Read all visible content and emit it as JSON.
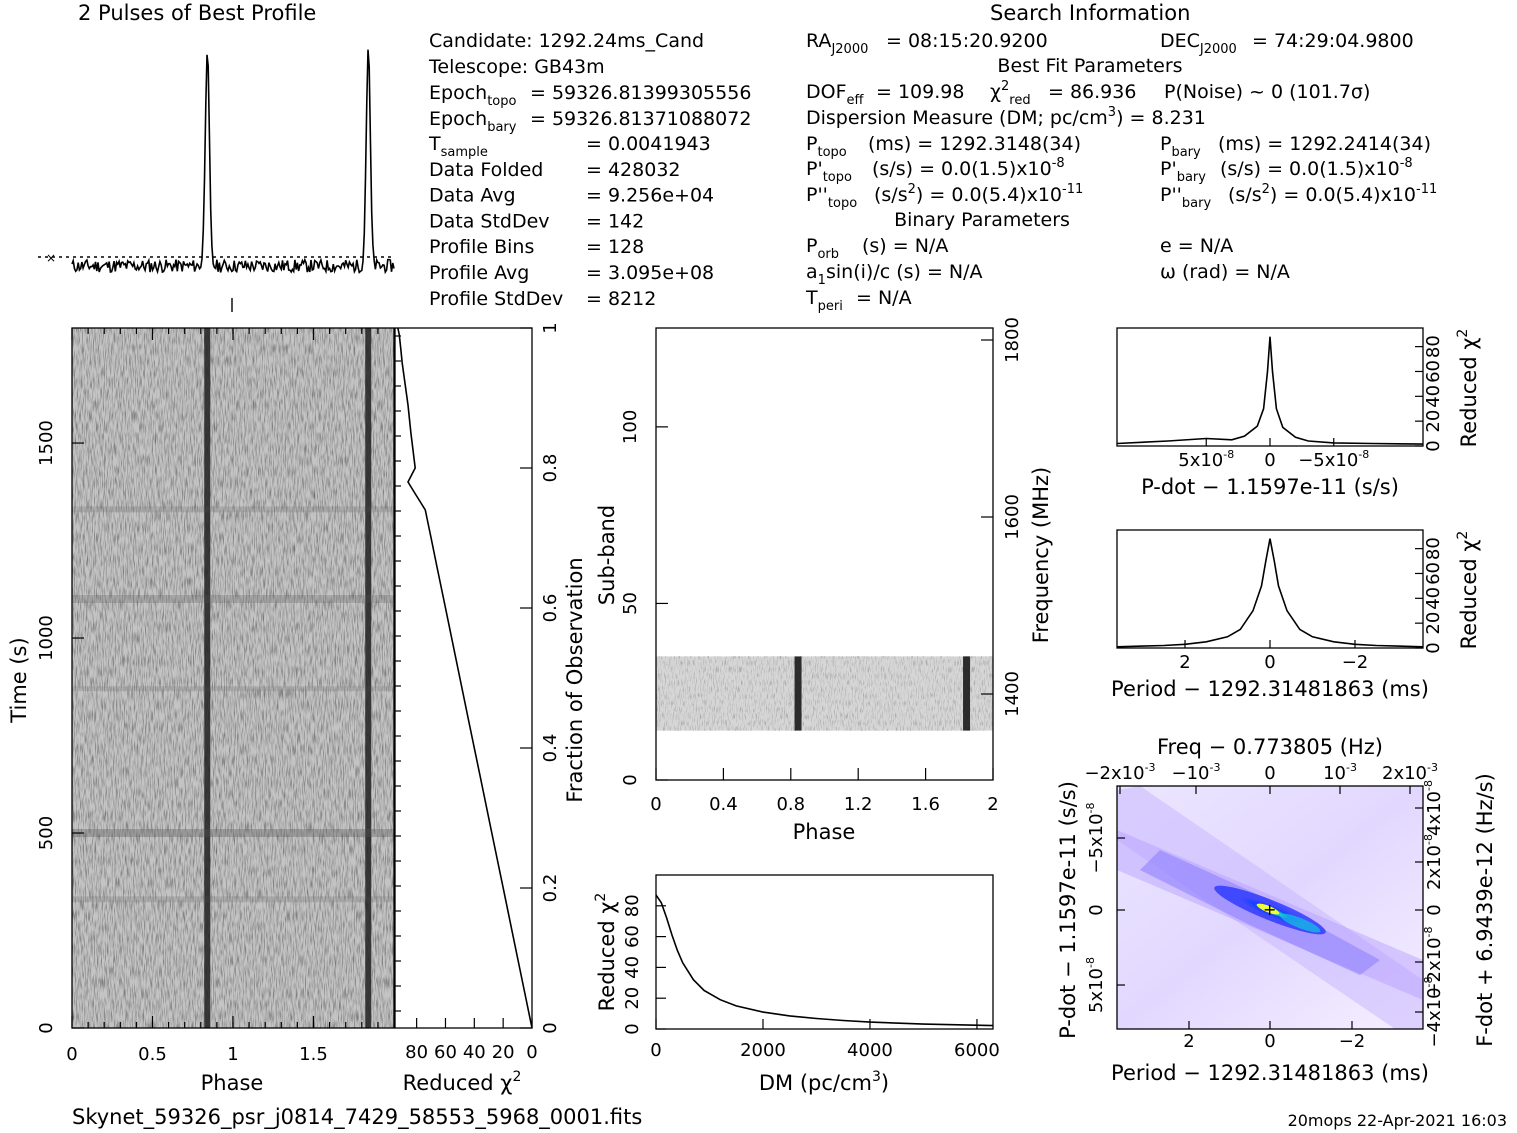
{
  "profile_title": "2 Pulses of Best Profile",
  "search_title": "Search Information",
  "footer": {
    "filename": "Skynet_59326_psr_j0814_7429_58553_5968_0001.fits",
    "stamp": "20mops 22-Apr-2021 16:03"
  },
  "candidate_info": {
    "candidate": "Candidate:   1292.24ms_Cand",
    "telescope": "Telescope:   GB43m",
    "epoch_topo": "= 59326.81399305556",
    "epoch_bary": "= 59326.81371088072",
    "rows": [
      {
        "label": "T",
        "sub": "sample",
        "value": "=   0.0041943"
      },
      {
        "label": "Data Folded",
        "sub": "",
        "value": "=   428032"
      },
      {
        "label": "Data Avg",
        "sub": "",
        "value": "=   9.256e+04"
      },
      {
        "label": "Data StdDev",
        "sub": "",
        "value": "=   142"
      },
      {
        "label": "Profile Bins",
        "sub": "",
        "value": "=   128"
      },
      {
        "label": "Profile Avg",
        "sub": "",
        "value": "=   3.095e+08"
      },
      {
        "label": "Profile StdDev",
        "sub": "",
        "value": "=   8212"
      }
    ]
  },
  "search_info": {
    "ra": "= 08:15:20.9200",
    "dec": "= 74:29:04.9800",
    "best_fit_title": "Best Fit Parameters",
    "dof": "= 109.98",
    "chi2": "= 86.936",
    "pnoise": "P(Noise) ~ 0    (101.7σ)",
    "dm_line": "Dispersion Measure (DM; pc/cm",
    "dm_value": ") = 8.231",
    "ptopo": "(ms) =   1292.3148(34)",
    "pbary": "(ms) =   1292.2414(34)",
    "pdot_topo": "(s/s) = 0.0(1.5)x10",
    "pdot_bary": "(s/s) = 0.0(1.5)x10",
    "pdot_exp": "-8",
    "pddot_topo_a": "(s/s",
    "pddot_topo_b": ") = 0.0(5.4)x10",
    "pddot_exp": "-11",
    "binary_title": "Binary Parameters",
    "porb": "(s) = N/A",
    "a1sini": "sin(i)/c (s) = N/A",
    "tperi": "= N/A",
    "ecc": "e = N/A",
    "omega": "ω (rad) = N/A"
  },
  "chart_data": [
    {
      "type": "line",
      "name": "profile",
      "title": "2 Pulses of Best Profile",
      "x_range": [
        0,
        2
      ],
      "peaks_phase": [
        0.84,
        1.84
      ],
      "peak_height": 1.0,
      "baseline": 0.0
    },
    {
      "type": "heatmap",
      "name": "time-phase",
      "xlabel": "Phase",
      "ylabel": "Time (s)",
      "xlim": [
        0,
        2
      ],
      "ylim": [
        0,
        1795
      ],
      "x_ticks": [
        "0",
        "0.5",
        "1",
        "1.5"
      ],
      "y_ticks": [
        "0",
        "500",
        "1000",
        "1500"
      ],
      "pulse_phases": [
        0.84,
        1.84
      ],
      "colormap": "gray"
    },
    {
      "type": "line",
      "name": "reduced-chi2-vs-time",
      "xlabel": "Reduced χ",
      "ylabel": "Fraction of Observation",
      "xlim": [
        95,
        0
      ],
      "ylim": [
        0,
        1
      ],
      "x_ticks": [
        "80",
        "60",
        "40",
        "20",
        "0"
      ],
      "y_ticks": [
        "0",
        "0.2",
        "0.4",
        "0.6",
        "0.8",
        "1"
      ],
      "x": [
        0,
        5,
        12,
        20,
        28,
        36,
        44,
        52,
        60,
        66,
        70,
        74,
        77,
        80,
        86,
        81,
        84,
        86,
        88,
        90,
        91,
        92,
        93
      ],
      "y": [
        0,
        0.05,
        0.12,
        0.2,
        0.28,
        0.36,
        0.44,
        0.52,
        0.6,
        0.66,
        0.7,
        0.74,
        0.75,
        0.76,
        0.78,
        0.8,
        0.85,
        0.89,
        0.92,
        0.95,
        0.97,
        0.99,
        1.0
      ]
    },
    {
      "type": "heatmap",
      "name": "subband-phase",
      "xlabel": "Phase",
      "ylabel": "Sub-band",
      "right_label": "Frequency (MHz)",
      "xlim": [
        0,
        2
      ],
      "ylim": [
        0,
        128
      ],
      "x_ticks": [
        "0",
        "0.4",
        "0.8",
        "1.2",
        "1.6",
        "2"
      ],
      "y_ticks": [
        "0",
        "50",
        "100"
      ],
      "right_ticks": [
        "1400",
        "1600",
        "1800"
      ],
      "band": [
        14,
        35
      ],
      "pulse_phases": [
        0.84,
        1.84
      ],
      "colormap": "gray"
    },
    {
      "type": "line",
      "name": "dm-curve",
      "xlabel": "DM (pc/cm",
      "ylabel": "Reduced χ",
      "xlim": [
        0,
        6300
      ],
      "ylim": [
        0,
        100
      ],
      "x_ticks": [
        "0",
        "2000",
        "4000",
        "6000"
      ],
      "y_ticks": [
        "0",
        "20",
        "40",
        "60",
        "80"
      ],
      "x": [
        0,
        100,
        200,
        300,
        400,
        500,
        700,
        900,
        1200,
        1500,
        2000,
        2500,
        3000,
        3500,
        4000,
        5000,
        6300
      ],
      "y": [
        87,
        82,
        72,
        61,
        51,
        43,
        32,
        25,
        19,
        15,
        11,
        8.5,
        6.8,
        5.5,
        4.5,
        3.2,
        2.2
      ]
    },
    {
      "type": "line",
      "name": "pdot-curve",
      "xlabel": "P-dot − 1.1597e-11 (s/s)",
      "ylabel": "Reduced χ",
      "xlim": [
        1.2e-07,
        -1.2e-07
      ],
      "ylim": [
        0,
        95
      ],
      "x_ticks": [
        "5x10",
        "0",
        "−5x10"
      ],
      "x_tick_exp": "-8",
      "y_ticks": [
        "0",
        "20",
        "40",
        "60",
        "80"
      ],
      "x": [
        1.2e-07,
        8e-08,
        5e-08,
        3e-08,
        2e-08,
        1e-08,
        5e-09,
        2e-09,
        0,
        -2e-09,
        -5e-09,
        -1e-08,
        -2e-08,
        -3e-08,
        -5e-08,
        -8e-08,
        -1.2e-07
      ],
      "y": [
        2,
        4,
        6,
        5,
        8,
        16,
        30,
        60,
        88,
        60,
        30,
        15,
        7,
        4,
        2.5,
        2,
        1.5
      ]
    },
    {
      "type": "line",
      "name": "period-curve",
      "xlabel": "Period − 1292.31481863 (ms)",
      "ylabel": "Reduced χ",
      "xlim": [
        3.6,
        -3.6
      ],
      "ylim": [
        0,
        95
      ],
      "x_ticks": [
        "2",
        "0",
        "−2"
      ],
      "y_ticks": [
        "0",
        "20",
        "40",
        "60",
        "80"
      ],
      "x": [
        3.6,
        3.0,
        2.5,
        2.0,
        1.5,
        1.0,
        0.7,
        0.4,
        0.2,
        0.1,
        0,
        -0.1,
        -0.2,
        -0.4,
        -0.7,
        -1.0,
        -1.5,
        -2.0,
        -2.5,
        -3.0,
        -3.6
      ],
      "y": [
        1,
        1.5,
        2,
        3,
        5,
        9,
        15,
        30,
        50,
        70,
        88,
        70,
        50,
        30,
        15,
        9,
        5,
        3,
        2,
        1.5,
        1
      ]
    },
    {
      "type": "heatmap",
      "name": "pdot-period",
      "title": "Freq − 0.773805 (Hz)",
      "xlabel": "Period − 1292.31481863 (ms)",
      "ylabel": "P-dot − 1.1597e-11 (s/s)",
      "right_label": "F-dot + 6.9439e-12 (Hz/s)",
      "x_ticks": [
        "2",
        "0",
        "−2"
      ],
      "top_ticks": [
        "−2x10",
        "−10",
        "0",
        "10",
        "2x10"
      ],
      "top_tick_exp": "-3",
      "y_ticks": [
        "−5x10",
        "0",
        "5x10"
      ],
      "y_tick_exp": "-8",
      "right_ticks": [
        "4x10",
        "2x10",
        "0",
        "−2x10",
        "−4x10"
      ],
      "right_tick_exp": "-8",
      "colormap": "rainbow",
      "peak": [
        0,
        0
      ]
    }
  ]
}
